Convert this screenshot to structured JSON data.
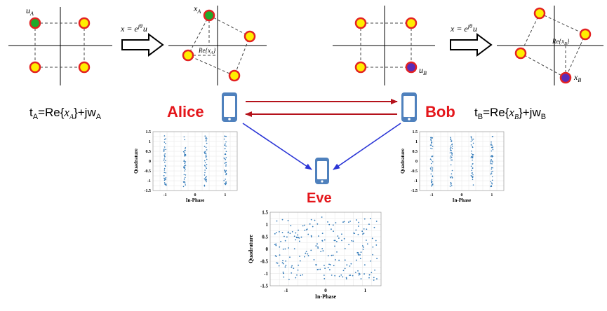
{
  "colors": {
    "red_name": "#e4161b",
    "arrow_red": "#b5121b",
    "arrow_blue": "#2a35d6",
    "point_fill": "#ffee00",
    "point_ring": "#e32222",
    "green": "#1faa2a",
    "purple": "#5a2bb8",
    "phone": "#4f81bd",
    "scatter": "#2f78b8",
    "axis": "#000000",
    "dash": "#444444"
  },
  "icons": [
    "phone-icon",
    "hollow-right-arrow-icon"
  ],
  "names": {
    "alice": "Alice",
    "bob": "Bob",
    "eve": "Eve"
  },
  "labels": {
    "u_A": "u",
    "u_A_sub": "A",
    "x_A": "x",
    "x_A_sub": "A",
    "re_xA": "Re{x",
    "re_xA_sub": "A",
    "re_close": "}",
    "u_B": "u",
    "u_B_sub": "B",
    "x_B": "x",
    "x_B_sub": "B",
    "re_xB": "Re{x",
    "re_xB_sub": "B",
    "transform_left": "x = e",
    "transform_exp": "jθ",
    "transform_right": "u"
  },
  "equations": {
    "alice": {
      "t": "t",
      "t_sub": "A",
      "mid": "=Re{",
      "x": "x",
      "x_sub": "A",
      "end": "}+jw",
      "w_sub": "A"
    },
    "bob": {
      "t": "t",
      "t_sub": "B",
      "mid": "=Re{",
      "x": "x",
      "x_sub": "B",
      "end": "}+jw",
      "w_sub": "B"
    }
  },
  "chart_data": [
    {
      "type": "scatter",
      "panel": "alice",
      "xlabel": "In-Phase",
      "ylabel": "Quadrature",
      "xlim": [
        -1.4,
        1.4
      ],
      "ylim": [
        -1.5,
        1.5
      ],
      "xticks": [
        "-1",
        "0",
        "1"
      ],
      "yticks": [
        "1.5",
        "1",
        "0.5",
        "0",
        "-0.5",
        "-1",
        "-1.5"
      ],
      "clusters_x": [
        -1,
        -0.35,
        0.35,
        1
      ],
      "points_per_cluster": 40,
      "spread_x": 0.04,
      "y_range": [
        -1.3,
        1.3
      ]
    },
    {
      "type": "scatter",
      "panel": "bob",
      "xlabel": "In-Phase",
      "ylabel": "Quadrature",
      "xlim": [
        -1.4,
        1.4
      ],
      "ylim": [
        -1.5,
        1.5
      ],
      "xticks": [
        "-1",
        "0",
        "1"
      ],
      "yticks": [
        "1.5",
        "1",
        "0.5",
        "0",
        "-0.5",
        "-1",
        "-1.5"
      ],
      "clusters_x": [
        -1,
        -0.35,
        0.35,
        1
      ],
      "points_per_cluster": 40,
      "spread_x": 0.04,
      "y_range": [
        -1.3,
        1.3
      ]
    },
    {
      "type": "scatter",
      "panel": "eve",
      "xlabel": "In-Phase",
      "ylabel": "Quadrature",
      "xlim": [
        -1.4,
        1.4
      ],
      "ylim": [
        -1.5,
        1.5
      ],
      "xticks": [
        "-1",
        "0",
        "1"
      ],
      "yticks": [
        "1.5",
        "1",
        "0.5",
        "0",
        "-0.5",
        "-1",
        "-1.5"
      ],
      "points": 210,
      "range": [
        -1.3,
        1.3
      ]
    }
  ]
}
